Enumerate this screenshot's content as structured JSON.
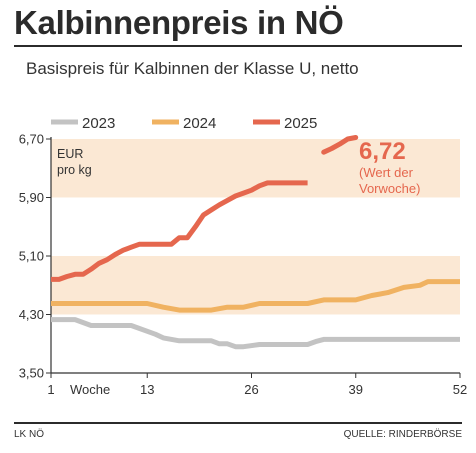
{
  "title": "Kalbinnenpreis in NÖ",
  "subtitle": "Basispreis für Kalbinnen der Klasse U, netto",
  "footer": {
    "left": "LK NÖ",
    "right": "QUELLE: RINDERBÖRSE"
  },
  "colors": {
    "2023": "#c3c3c3",
    "2024": "#f0b261",
    "2025": "#e5674e",
    "band": "#fbe8d4",
    "annotation": "#e5674e"
  },
  "chart_data": {
    "type": "line",
    "title": "Kalbinnenpreis in NÖ",
    "subtitle": "Basispreis für Kalbinnen der Klasse U, netto",
    "unit_label": [
      "EUR",
      "pro kg"
    ],
    "xlabel": "Woche",
    "x_ticks": [
      "1",
      "13",
      "26",
      "39",
      "52"
    ],
    "y_ticks": [
      "6,70",
      "5,90",
      "5,10",
      "4,30",
      "3,50"
    ],
    "ylim": [
      3.5,
      6.7
    ],
    "xlim": [
      1,
      52
    ],
    "bands": [
      [
        4.3,
        5.1
      ],
      [
        5.9,
        6.7
      ]
    ],
    "legend_position": "top",
    "series": [
      {
        "name": "2023",
        "x": [
          1,
          4,
          6,
          11,
          14,
          15,
          17,
          18,
          21,
          22,
          23,
          24,
          25,
          27,
          29,
          33,
          34,
          35,
          40,
          45,
          52
        ],
        "y": [
          4.23,
          4.23,
          4.15,
          4.15,
          4.03,
          3.98,
          3.94,
          3.94,
          3.94,
          3.9,
          3.9,
          3.86,
          3.86,
          3.89,
          3.89,
          3.89,
          3.93,
          3.96,
          3.96,
          3.96,
          3.96
        ]
      },
      {
        "name": "2024",
        "x": [
          1,
          13,
          15,
          17,
          19,
          21,
          23,
          25,
          27,
          29,
          33,
          35,
          37,
          39,
          41,
          43,
          45,
          47,
          48,
          52
        ],
        "y": [
          4.45,
          4.45,
          4.4,
          4.36,
          4.36,
          4.36,
          4.4,
          4.4,
          4.45,
          4.45,
          4.45,
          4.5,
          4.5,
          4.5,
          4.56,
          4.6,
          4.67,
          4.7,
          4.75,
          4.75
        ]
      },
      {
        "name": "2025",
        "x": [
          1,
          2,
          3,
          4,
          5,
          6,
          7,
          8,
          9,
          10,
          11,
          12,
          13,
          14,
          16,
          17,
          18,
          19,
          20,
          21,
          22,
          23,
          24,
          25,
          26,
          27,
          28,
          29,
          30,
          31,
          32,
          33
        ],
        "y": [
          4.78,
          4.78,
          4.82,
          4.85,
          4.85,
          4.92,
          5.0,
          5.05,
          5.12,
          5.18,
          5.22,
          5.26,
          5.26,
          5.26,
          5.26,
          5.35,
          5.35,
          5.5,
          5.66,
          5.73,
          5.8,
          5.86,
          5.92,
          5.96,
          6.0,
          6.06,
          6.1,
          6.1,
          6.1,
          6.1,
          6.1,
          6.1
        ]
      }
    ],
    "latest_value": {
      "label": "6,72",
      "note": [
        "(Wert der",
        "Vorwoche)"
      ],
      "x": [
        35,
        36,
        37,
        38,
        39
      ],
      "y": [
        6.52,
        6.57,
        6.63,
        6.7,
        6.72
      ]
    }
  }
}
